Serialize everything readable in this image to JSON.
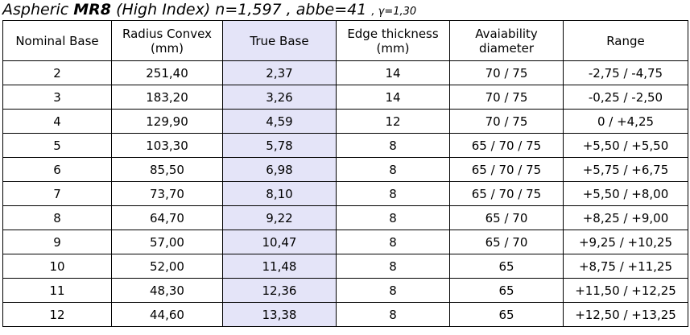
{
  "title": {
    "prefix": "Aspheric ",
    "model": "MR8",
    "suffix": " (High Index) n=1,597 , abbe=41 ",
    "gamma": ", γ=1,30"
  },
  "table": {
    "headers": [
      "Nominal Base",
      "Radius Convex (mm)",
      "True Base",
      "Edge thickness (mm)",
      "Avaiability diameter",
      "Range"
    ],
    "rows": [
      [
        "2",
        "251,40",
        "2,37",
        "14",
        "70 / 75",
        "-2,75 / -4,75"
      ],
      [
        "3",
        "183,20",
        "3,26",
        "14",
        "70 / 75",
        "-0,25 / -2,50"
      ],
      [
        "4",
        "129,90",
        "4,59",
        "12",
        "70 / 75",
        "0 / +4,25"
      ],
      [
        "5",
        "103,30",
        "5,78",
        "8",
        "65 / 70 / 75",
        "+5,50 / +5,50"
      ],
      [
        "6",
        "85,50",
        "6,98",
        "8",
        "65 / 70 / 75",
        "+5,75 / +6,75"
      ],
      [
        "7",
        "73,70",
        "8,10",
        "8",
        "65 / 70 / 75",
        "+5,50 / +8,00"
      ],
      [
        "8",
        "64,70",
        "9,22",
        "8",
        "65 / 70",
        "+8,25 / +9,00"
      ],
      [
        "9",
        "57,00",
        "10,47",
        "8",
        "65 / 70",
        "+9,25 / +10,25"
      ],
      [
        "10",
        "52,00",
        "11,48",
        "8",
        "65",
        "+8,75 / +11,25"
      ],
      [
        "11",
        "48,30",
        "12,36",
        "8",
        "65",
        "+11,50 / +12,25"
      ],
      [
        "12",
        "44,60",
        "13,38",
        "8",
        "65",
        "+12,50 / +13,25"
      ]
    ]
  },
  "colors": {
    "true_base_highlight": "#e4e4f8",
    "border": "#000000"
  }
}
